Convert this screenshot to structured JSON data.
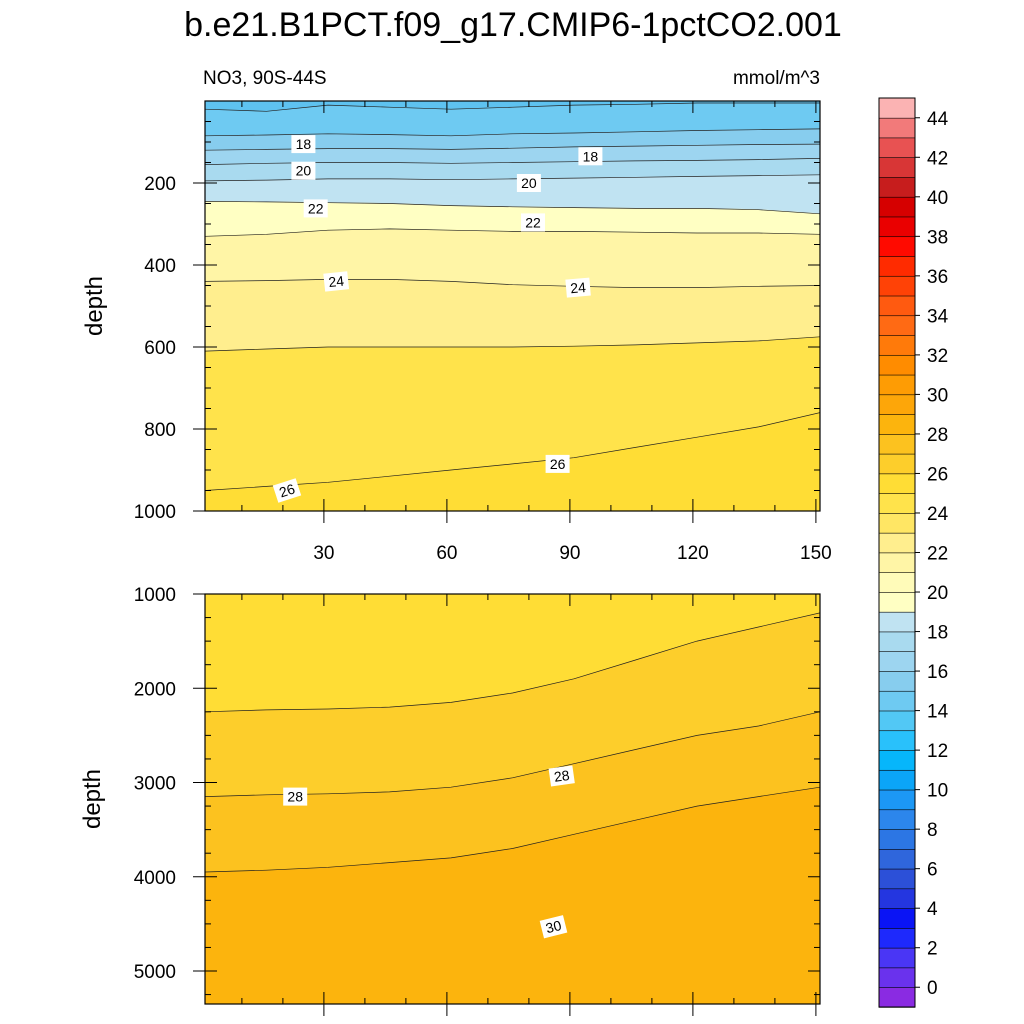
{
  "figure_title": "b.e21.B1PCT.f09_g17.CMIP6-1pctCO2.001",
  "chart_data": {
    "type": "contour",
    "variable": "NO3",
    "region": "90S-44S",
    "left_string": "NO3, 90S-44S",
    "right_string": "mmol/m^3",
    "x_range": [
      1,
      151
    ],
    "x_ticks": [
      30,
      60,
      90,
      120,
      150
    ],
    "upper_panel": {
      "ylabel": "depth",
      "ylim": [
        0,
        1000
      ],
      "y_ticks": [
        200,
        400,
        600,
        800,
        1000
      ],
      "bands": [
        {
          "bottom": [
            20,
            25,
            10,
            15,
            20,
            15,
            10,
            8,
            5,
            5,
            5
          ],
          "color": "#5ec2f0"
        },
        {
          "bottom": [
            85,
            83,
            80,
            82,
            85,
            80,
            78,
            75,
            72,
            70,
            68
          ],
          "color": "#6ecaf2"
        },
        {
          "bottom": [
            120,
            118,
            116,
            116,
            118,
            115,
            112,
            110,
            108,
            106,
            105
          ],
          "color": "#87cdee"
        },
        {
          "bottom": [
            155,
            152,
            150,
            150,
            152,
            150,
            148,
            146,
            145,
            143,
            140
          ],
          "color": "#9dd5f0"
        },
        {
          "bottom": [
            195,
            193,
            190,
            190,
            192,
            190,
            188,
            186,
            184,
            182,
            180
          ],
          "color": "#a9daef"
        },
        {
          "bottom": [
            245,
            246,
            248,
            250,
            255,
            258,
            260,
            262,
            262,
            265,
            275
          ],
          "color": "#c0e3f2"
        },
        {
          "bottom": [
            330,
            325,
            315,
            312,
            315,
            318,
            318,
            320,
            322,
            322,
            325
          ],
          "color": "#ffffc3"
        },
        {
          "bottom": [
            440,
            438,
            435,
            435,
            440,
            448,
            452,
            455,
            455,
            452,
            450
          ],
          "color": "#fff5a6"
        },
        {
          "bottom": [
            610,
            605,
            600,
            600,
            600,
            600,
            598,
            595,
            590,
            585,
            575
          ],
          "color": "#ffee8e"
        },
        {
          "bottom": [
            950,
            940,
            930,
            915,
            900,
            885,
            870,
            845,
            820,
            795,
            760
          ],
          "color": "#ffe34b"
        },
        {
          "bottom": [
            1000,
            1000,
            1000,
            1000,
            1000,
            1000,
            1000,
            1000,
            1000,
            1000,
            1000
          ],
          "color": "#ffdd35"
        }
      ],
      "contour_labels": [
        {
          "text": "18",
          "x": 25,
          "y": 105,
          "angle": 0
        },
        {
          "text": "18",
          "x": 95,
          "y": 135,
          "angle": 0
        },
        {
          "text": "20",
          "x": 25,
          "y": 170,
          "angle": 0
        },
        {
          "text": "20",
          "x": 80,
          "y": 200,
          "angle": 0
        },
        {
          "text": "22",
          "x": 28,
          "y": 262,
          "angle": 0
        },
        {
          "text": "22",
          "x": 81,
          "y": 296,
          "angle": 0
        },
        {
          "text": "24",
          "x": 33,
          "y": 440,
          "angle": -6
        },
        {
          "text": "24",
          "x": 92,
          "y": 455,
          "angle": -5
        },
        {
          "text": "26",
          "x": 21,
          "y": 950,
          "angle": -18
        },
        {
          "text": "26",
          "x": 87,
          "y": 885,
          "angle": 0
        }
      ]
    },
    "lower_panel": {
      "ylabel": "depth",
      "ylim": [
        1000,
        5350
      ],
      "y_ticks": [
        1000,
        2000,
        3000,
        4000,
        5000
      ],
      "bands": [
        {
          "bottom": [
            2250,
            2230,
            2220,
            2200,
            2150,
            2050,
            1900,
            1700,
            1500,
            1350,
            1200
          ],
          "color": "#ffdd35"
        },
        {
          "bottom": [
            3150,
            3130,
            3120,
            3100,
            3050,
            2950,
            2800,
            2650,
            2500,
            2400,
            2250
          ],
          "color": "#fdce2b"
        },
        {
          "bottom": [
            3950,
            3930,
            3900,
            3850,
            3800,
            3700,
            3550,
            3400,
            3250,
            3150,
            3050
          ],
          "color": "#fcc21f"
        },
        {
          "bottom": [
            5350,
            5350,
            5350,
            5350,
            5350,
            5350,
            5350,
            5350,
            5350,
            5350,
            5350
          ],
          "color": "#fcb40d"
        }
      ],
      "contour_labels": [
        {
          "text": "28",
          "x": 23,
          "y": 3150,
          "angle": 0
        },
        {
          "text": "28",
          "x": 88,
          "y": 2930,
          "angle": -8
        },
        {
          "text": "30",
          "x": 86,
          "y": 4530,
          "angle": -14
        }
      ]
    },
    "colorbar": {
      "labels": [
        "0",
        "2",
        "4",
        "6",
        "8",
        "10",
        "12",
        "14",
        "16",
        "18",
        "20",
        "22",
        "24",
        "26",
        "28",
        "30",
        "32",
        "34",
        "36",
        "38",
        "40",
        "42",
        "44"
      ],
      "colors": [
        "#8a2be2",
        "#6a32ed",
        "#4a36f5",
        "#1e29fc",
        "#0a14f5",
        "#2436e0",
        "#2c50d8",
        "#2f66dc",
        "#2c76e4",
        "#2c86ec",
        "#1c98f5",
        "#0ba5f8",
        "#06b6fb",
        "#29c1fb",
        "#52c8f5",
        "#6ecaf2",
        "#87cdee",
        "#9dd5f0",
        "#a9daef",
        "#c0e3f2",
        "#ffffc3",
        "#fffbb9",
        "#fff5a6",
        "#ffee8e",
        "#ffe664",
        "#ffe34b",
        "#ffdd35",
        "#fdce2b",
        "#fcc21f",
        "#fcb40d",
        "#fda609",
        "#fe9c04",
        "#ff8c00",
        "#ff7a0a",
        "#ff6a14",
        "#ff5a10",
        "#ff4206",
        "#ff2b00",
        "#ff0a00",
        "#ea0000",
        "#d60000",
        "#c71d1d",
        "#d83636",
        "#e85252",
        "#f27a7a",
        "#fbb3b3"
      ]
    }
  }
}
